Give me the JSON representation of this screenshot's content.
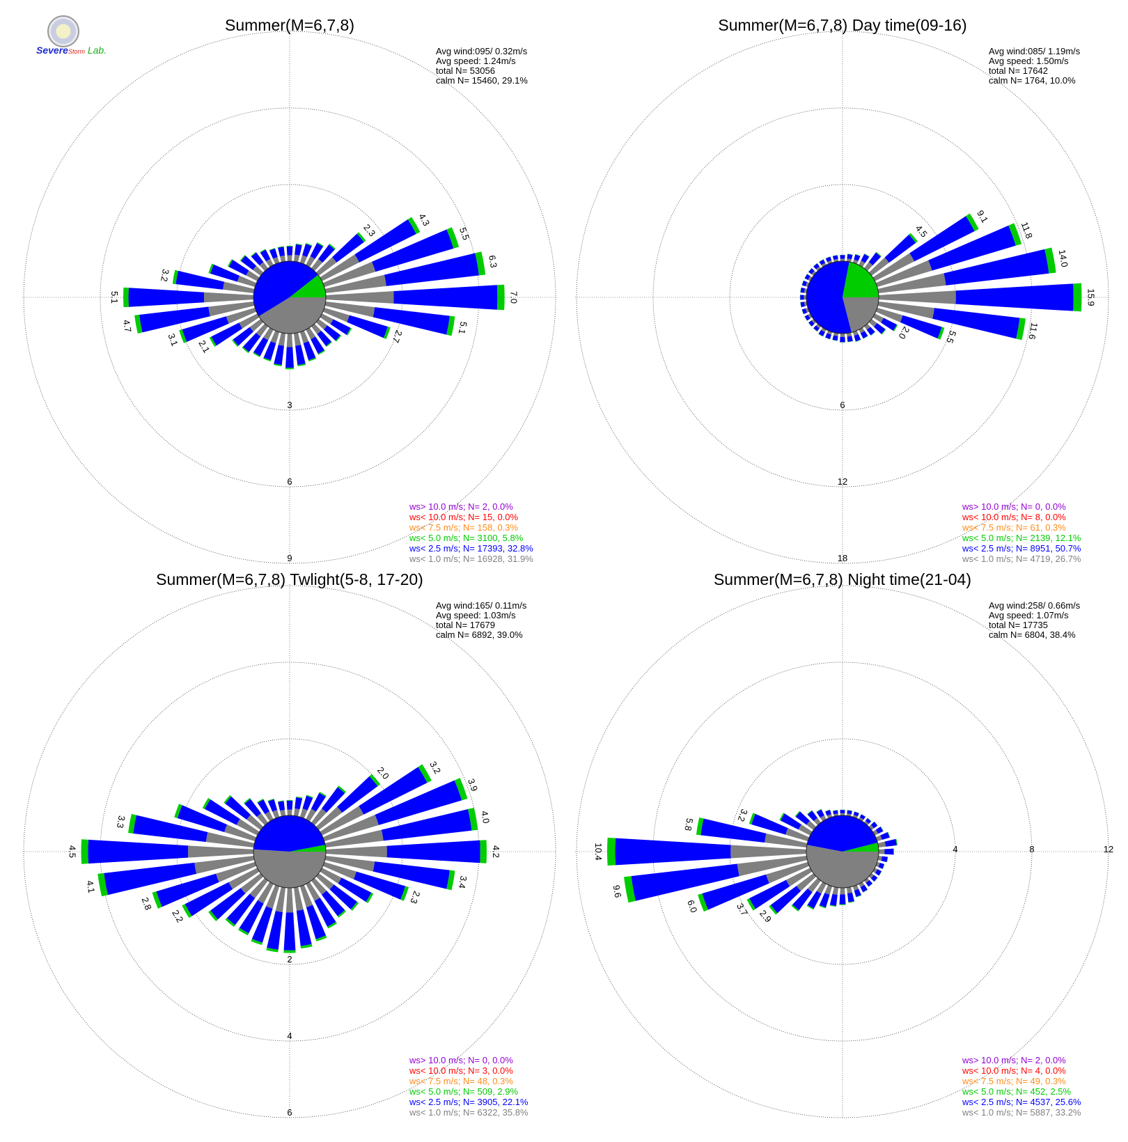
{
  "logo": {
    "text_severe": "Severe",
    "text_storm": "Storm",
    "text_lab": "Lab."
  },
  "colors": {
    "calm": "#808080",
    "lt1": "#808080",
    "lt2_5": "#0000ff",
    "lt5": "#00cc00",
    "lt7_5": "#ff8c1a",
    "lt10": "#ff0000",
    "gt10": "#9400d3",
    "text": "#000000",
    "grid": "#555555"
  },
  "chart_data": [
    {
      "type": "windrose",
      "title": "Summer(M=6,7,8)",
      "stats": [
        "Avg wind:095/ 0.32m/s",
        "Avg speed: 1.24m/s",
        "total N=      53056",
        "calm N=  15460,  29.1%"
      ],
      "rmax": 9,
      "ring_ticks": [
        3,
        6,
        9
      ],
      "calm_pct": 29.1,
      "calm_split_pct": [
        [
          "gray",
          12
        ],
        [
          "blue",
          14
        ],
        [
          "green",
          3.1
        ]
      ],
      "directions_deg_step": 10,
      "sectors": [
        {
          "dir": 0,
          "pct": 0.6
        },
        {
          "dir": 10,
          "pct": 0.7
        },
        {
          "dir": 20,
          "pct": 0.8
        },
        {
          "dir": 30,
          "pct": 1.0
        },
        {
          "dir": 40,
          "pct": 1.2
        },
        {
          "dir": 50,
          "pct": 2.3
        },
        {
          "dir": 60,
          "pct": 4.3
        },
        {
          "dir": 70,
          "pct": 5.5
        },
        {
          "dir": 80,
          "pct": 6.3
        },
        {
          "dir": 90,
          "pct": 7.0
        },
        {
          "dir": 100,
          "pct": 5.1
        },
        {
          "dir": 110,
          "pct": 2.7
        },
        {
          "dir": 120,
          "pct": 1.3
        },
        {
          "dir": 130,
          "pct": 1.1
        },
        {
          "dir": 140,
          "pct": 1.0
        },
        {
          "dir": 150,
          "pct": 1.1
        },
        {
          "dir": 160,
          "pct": 1.2
        },
        {
          "dir": 170,
          "pct": 1.3
        },
        {
          "dir": 180,
          "pct": 1.4
        },
        {
          "dir": 190,
          "pct": 1.3
        },
        {
          "dir": 200,
          "pct": 1.2
        },
        {
          "dir": 210,
          "pct": 1.2
        },
        {
          "dir": 220,
          "pct": 1.3
        },
        {
          "dir": 230,
          "pct": 1.4
        },
        {
          "dir": 240,
          "pct": 2.1
        },
        {
          "dir": 250,
          "pct": 3.1
        },
        {
          "dir": 260,
          "pct": 4.7
        },
        {
          "dir": 270,
          "pct": 5.1
        },
        {
          "dir": 280,
          "pct": 3.2
        },
        {
          "dir": 290,
          "pct": 1.9
        },
        {
          "dir": 300,
          "pct": 1.3
        },
        {
          "dir": 310,
          "pct": 1.0
        },
        {
          "dir": 320,
          "pct": 0.8
        },
        {
          "dir": 330,
          "pct": 0.7
        },
        {
          "dir": 340,
          "pct": 0.6
        },
        {
          "dir": 350,
          "pct": 0.6
        }
      ],
      "label_dirs": [
        50,
        60,
        70,
        80,
        90,
        100,
        110,
        240,
        250,
        260,
        270,
        280
      ],
      "legend": [
        {
          "cls": "gt10",
          "text": "ws> 10.0 m/s; N=     2,  0.0%"
        },
        {
          "cls": "lt10",
          "text": "ws< 10.0 m/s; N=    15,  0.0%"
        },
        {
          "cls": "lt7_5",
          "text": "ws<  7.5 m/s; N=   158,  0.3%"
        },
        {
          "cls": "lt5",
          "text": "ws<  5.0 m/s; N=  3100,  5.8%"
        },
        {
          "cls": "lt2_5",
          "text": "ws<  2.5 m/s; N= 17393, 32.8%"
        },
        {
          "cls": "lt1",
          "text": "ws<  1.0 m/s; N= 16928, 31.9%"
        }
      ]
    },
    {
      "type": "windrose",
      "title": "Summer(M=6,7,8) Day time(09-16)",
      "stats": [
        "Avg wind:085/ 1.19m/s",
        "Avg speed: 1.50m/s",
        "total N=      17642",
        "calm N=   1764,  10.0%"
      ],
      "rmax": 18,
      "ring_ticks": [
        6,
        12,
        18
      ],
      "calm_pct": 10.0,
      "calm_split_pct": [
        [
          "gray",
          21
        ],
        [
          "blue",
          57
        ],
        [
          "green",
          22
        ]
      ],
      "directions_deg_step": 10,
      "sectors": [
        {
          "dir": 0,
          "pct": 0.5
        },
        {
          "dir": 10,
          "pct": 0.6
        },
        {
          "dir": 20,
          "pct": 0.7
        },
        {
          "dir": 30,
          "pct": 1.0
        },
        {
          "dir": 40,
          "pct": 1.6
        },
        {
          "dir": 50,
          "pct": 4.5
        },
        {
          "dir": 60,
          "pct": 9.1
        },
        {
          "dir": 70,
          "pct": 11.8
        },
        {
          "dir": 80,
          "pct": 14.0
        },
        {
          "dir": 90,
          "pct": 15.9
        },
        {
          "dir": 100,
          "pct": 11.6
        },
        {
          "dir": 110,
          "pct": 5.5
        },
        {
          "dir": 120,
          "pct": 2.0
        },
        {
          "dir": 130,
          "pct": 1.4
        },
        {
          "dir": 140,
          "pct": 0.9
        },
        {
          "dir": 150,
          "pct": 0.8
        },
        {
          "dir": 160,
          "pct": 0.8
        },
        {
          "dir": 170,
          "pct": 0.7
        },
        {
          "dir": 180,
          "pct": 0.7
        },
        {
          "dir": 190,
          "pct": 0.6
        },
        {
          "dir": 200,
          "pct": 0.6
        },
        {
          "dir": 210,
          "pct": 0.6
        },
        {
          "dir": 220,
          "pct": 0.5
        },
        {
          "dir": 230,
          "pct": 0.5
        },
        {
          "dir": 240,
          "pct": 0.5
        },
        {
          "dir": 250,
          "pct": 0.5
        },
        {
          "dir": 260,
          "pct": 0.5
        },
        {
          "dir": 270,
          "pct": 0.5
        },
        {
          "dir": 280,
          "pct": 0.5
        },
        {
          "dir": 290,
          "pct": 0.5
        },
        {
          "dir": 300,
          "pct": 0.5
        },
        {
          "dir": 310,
          "pct": 0.5
        },
        {
          "dir": 320,
          "pct": 0.5
        },
        {
          "dir": 330,
          "pct": 0.5
        },
        {
          "dir": 340,
          "pct": 0.5
        },
        {
          "dir": 350,
          "pct": 0.5
        }
      ],
      "label_dirs": [
        50,
        60,
        70,
        80,
        90,
        100,
        110,
        120
      ],
      "legend": [
        {
          "cls": "gt10",
          "text": "ws> 10.0 m/s; N=     0,  0.0%"
        },
        {
          "cls": "lt10",
          "text": "ws< 10.0 m/s; N=     8,  0.0%"
        },
        {
          "cls": "lt7_5",
          "text": "ws<  7.5 m/s; N=    61,  0.3%"
        },
        {
          "cls": "lt5",
          "text": "ws<  5.0 m/s; N=  2139, 12.1%"
        },
        {
          "cls": "lt2_5",
          "text": "ws<  2.5 m/s; N=  8951, 50.7%"
        },
        {
          "cls": "lt1",
          "text": "ws<  1.0 m/s; N=  4719, 26.7%"
        }
      ]
    },
    {
      "type": "windrose",
      "title": "Summer(M=6,7,8) Twlight(5-8, 17-20)",
      "stats": [
        "Avg wind:165/ 0.11m/s",
        "Avg speed: 1.03m/s",
        "total N=      17679",
        "calm N=   6892,  39.0%"
      ],
      "rmax": 6,
      "ring_ticks": [
        2,
        4,
        6
      ],
      "calm_pct": 39.0,
      "calm_split_pct": [
        [
          "gray",
          51
        ],
        [
          "blue",
          46
        ],
        [
          "green",
          3
        ]
      ],
      "directions_deg_step": 10,
      "sectors": [
        {
          "dir": 0,
          "pct": 0.4
        },
        {
          "dir": 10,
          "pct": 0.5
        },
        {
          "dir": 20,
          "pct": 0.6
        },
        {
          "dir": 30,
          "pct": 0.8
        },
        {
          "dir": 40,
          "pct": 1.2
        },
        {
          "dir": 50,
          "pct": 2.0
        },
        {
          "dir": 60,
          "pct": 3.2
        },
        {
          "dir": 70,
          "pct": 3.9
        },
        {
          "dir": 80,
          "pct": 4.0
        },
        {
          "dir": 90,
          "pct": 4.2
        },
        {
          "dir": 100,
          "pct": 3.4
        },
        {
          "dir": 110,
          "pct": 2.3
        },
        {
          "dir": 120,
          "pct": 1.5
        },
        {
          "dir": 130,
          "pct": 1.3
        },
        {
          "dir": 140,
          "pct": 1.2
        },
        {
          "dir": 150,
          "pct": 1.3
        },
        {
          "dir": 160,
          "pct": 1.5
        },
        {
          "dir": 170,
          "pct": 1.6
        },
        {
          "dir": 180,
          "pct": 1.7
        },
        {
          "dir": 190,
          "pct": 1.7
        },
        {
          "dir": 200,
          "pct": 1.6
        },
        {
          "dir": 210,
          "pct": 1.5
        },
        {
          "dir": 220,
          "pct": 1.5
        },
        {
          "dir": 230,
          "pct": 1.7
        },
        {
          "dir": 240,
          "pct": 2.2
        },
        {
          "dir": 250,
          "pct": 2.8
        },
        {
          "dir": 260,
          "pct": 4.1
        },
        {
          "dir": 270,
          "pct": 4.5
        },
        {
          "dir": 280,
          "pct": 3.3
        },
        {
          "dir": 290,
          "pct": 2.2
        },
        {
          "dir": 300,
          "pct": 1.6
        },
        {
          "dir": 310,
          "pct": 1.2
        },
        {
          "dir": 320,
          "pct": 0.8
        },
        {
          "dir": 330,
          "pct": 0.6
        },
        {
          "dir": 340,
          "pct": 0.5
        },
        {
          "dir": 350,
          "pct": 0.4
        }
      ],
      "label_dirs": [
        50,
        60,
        70,
        80,
        90,
        100,
        110,
        240,
        250,
        260,
        270,
        280
      ],
      "legend": [
        {
          "cls": "gt10",
          "text": "ws> 10.0 m/s; N=     0,  0.0%"
        },
        {
          "cls": "lt10",
          "text": "ws< 10.0 m/s; N=     3,  0.0%"
        },
        {
          "cls": "lt7_5",
          "text": "ws<  7.5 m/s; N=    48,  0.3%"
        },
        {
          "cls": "lt5",
          "text": "ws<  5.0 m/s; N=   509,  2.9%"
        },
        {
          "cls": "lt2_5",
          "text": "ws<  2.5 m/s; N=  3905, 22.1%"
        },
        {
          "cls": "lt1",
          "text": "ws<  1.0 m/s; N=  6322, 35.8%"
        }
      ]
    },
    {
      "type": "windrose",
      "title": "Summer(M=6,7,8) Night time(21-04)",
      "stats": [
        "Avg wind:258/ 0.66m/s",
        "Avg speed: 1.07m/s",
        "total N=      17735",
        "calm N=   6804,  38.4%"
      ],
      "rmax": 12,
      "ring_ticks": [
        4,
        8,
        12
      ],
      "ring_tick_side": "right",
      "calm_pct": 38.4,
      "calm_split_pct": [
        [
          "gray",
          53
        ],
        [
          "blue",
          43
        ],
        [
          "green",
          4
        ]
      ],
      "directions_deg_step": 10,
      "sectors": [
        {
          "dir": 0,
          "pct": 0.3
        },
        {
          "dir": 10,
          "pct": 0.3
        },
        {
          "dir": 20,
          "pct": 0.3
        },
        {
          "dir": 30,
          "pct": 0.3
        },
        {
          "dir": 40,
          "pct": 0.3
        },
        {
          "dir": 50,
          "pct": 0.4
        },
        {
          "dir": 60,
          "pct": 0.5
        },
        {
          "dir": 70,
          "pct": 0.7
        },
        {
          "dir": 80,
          "pct": 1.0
        },
        {
          "dir": 90,
          "pct": 0.8
        },
        {
          "dir": 100,
          "pct": 0.5
        },
        {
          "dir": 110,
          "pct": 0.4
        },
        {
          "dir": 120,
          "pct": 0.4
        },
        {
          "dir": 130,
          "pct": 0.4
        },
        {
          "dir": 140,
          "pct": 0.4
        },
        {
          "dir": 150,
          "pct": 0.5
        },
        {
          "dir": 160,
          "pct": 0.6
        },
        {
          "dir": 170,
          "pct": 0.8
        },
        {
          "dir": 180,
          "pct": 0.9
        },
        {
          "dir": 190,
          "pct": 1.0
        },
        {
          "dir": 200,
          "pct": 1.2
        },
        {
          "dir": 210,
          "pct": 1.5
        },
        {
          "dir": 220,
          "pct": 2.0
        },
        {
          "dir": 230,
          "pct": 2.9
        },
        {
          "dir": 240,
          "pct": 3.7
        },
        {
          "dir": 250,
          "pct": 6.0
        },
        {
          "dir": 260,
          "pct": 9.6
        },
        {
          "dir": 270,
          "pct": 10.4
        },
        {
          "dir": 280,
          "pct": 5.8
        },
        {
          "dir": 290,
          "pct": 3.2
        },
        {
          "dir": 300,
          "pct": 1.8
        },
        {
          "dir": 310,
          "pct": 1.2
        },
        {
          "dir": 320,
          "pct": 0.8
        },
        {
          "dir": 330,
          "pct": 0.6
        },
        {
          "dir": 340,
          "pct": 0.4
        },
        {
          "dir": 350,
          "pct": 0.3
        }
      ],
      "label_dirs": [
        230,
        240,
        250,
        260,
        270,
        280,
        290
      ],
      "legend": [
        {
          "cls": "gt10",
          "text": "ws> 10.0 m/s; N=     2,  0.0%"
        },
        {
          "cls": "lt10",
          "text": "ws< 10.0 m/s; N=     4,  0.0%"
        },
        {
          "cls": "lt7_5",
          "text": "ws<  7.5 m/s; N=    49,  0.3%"
        },
        {
          "cls": "lt5",
          "text": "ws<  5.0 m/s; N=   452,  2.5%"
        },
        {
          "cls": "lt2_5",
          "text": "ws<  2.5 m/s; N=  4537, 25.6%"
        },
        {
          "cls": "lt1",
          "text": "ws<  1.0 m/s; N=  5887, 33.2%"
        }
      ]
    }
  ]
}
